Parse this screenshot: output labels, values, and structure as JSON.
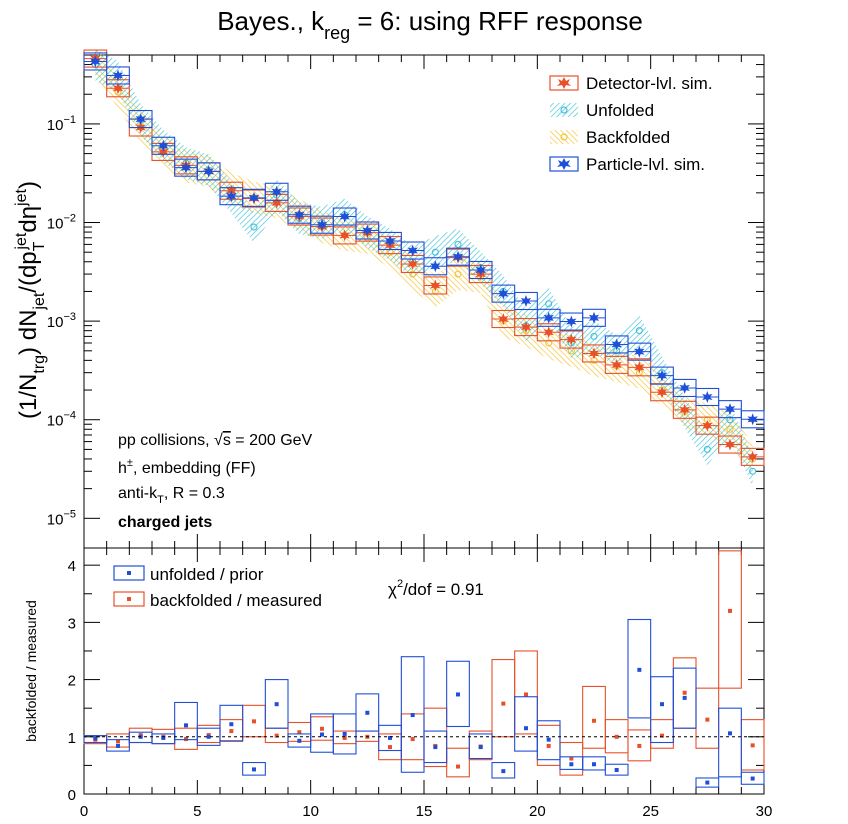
{
  "colors": {
    "detector": "#e8502a",
    "unfolded": "#3ec1d8",
    "backfolded": "#f5c32c",
    "particle": "#1f4fd8"
  },
  "chart_data": [
    {
      "type": "scatter",
      "log_y": true,
      "title": "Bayes., k",
      "title_sub": "reg",
      "title_tail": " = 6: using RFF response",
      "ylabel": {
        "a": "(1/N",
        "a_sub": "trg",
        "b": ") dN",
        "b_sub": "jet",
        "c": "/(dp",
        "c_sub": "T",
        "c_sup": "jet",
        "d": "dη",
        "d_sup": "jet",
        "e": ")"
      },
      "xlim": [
        0,
        30
      ],
      "ylim": [
        5e-06,
        0.5
      ],
      "y_ticks": [
        {
          "value": 0.1,
          "base": "10",
          "exp": "−1"
        },
        {
          "value": 0.01,
          "base": "10",
          "exp": "−2"
        },
        {
          "value": 0.001,
          "base": "10",
          "exp": "−3"
        },
        {
          "value": 0.0001,
          "base": "10",
          "exp": "−4"
        },
        {
          "value": 1e-05,
          "base": "10",
          "exp": "−5"
        }
      ],
      "legend": {
        "position": "top-right",
        "entries": [
          "Detector-lvl. sim.",
          "Unfolded",
          "Backfolded",
          "Particle-lvl. sim."
        ]
      },
      "annotations": {
        "line1_a": "pp collisions, ",
        "line1_sqrt": "√",
        "line1_s": "s",
        "line1_b": " = 200 GeV",
        "line2_a": "h",
        "line2_sup": "±",
        "line2_b": ", embedding (FF)",
        "line3_a": "anti-k",
        "line3_sub": "T",
        "line3_b": ", R = 0.3",
        "line4": "charged jets"
      },
      "x": [
        0.5,
        1.5,
        2.5,
        3.5,
        4.5,
        5.5,
        6.5,
        7.5,
        8.5,
        9.5,
        10.5,
        11.5,
        12.5,
        13.5,
        14.5,
        15.5,
        16.5,
        17.5,
        18.5,
        19.5,
        20.5,
        21.5,
        22.5,
        23.5,
        24.5,
        25.5,
        26.5,
        27.5,
        28.5,
        29.5
      ],
      "series": [
        {
          "name": "Detector-lvl. sim.",
          "values": [
            0.46,
            0.23,
            0.092,
            0.052,
            0.038,
            0.033,
            0.021,
            0.0175,
            0.0158,
            0.0115,
            0.0091,
            0.0074,
            0.0079,
            0.0059,
            0.0038,
            0.0023,
            0.0044,
            0.003,
            0.00105,
            0.00087,
            0.00077,
            0.00065,
            0.00047,
            0.00036,
            0.00034,
            0.00019,
            0.000126,
            8.7e-05,
            5.6e-05,
            4.2e-05
          ]
        },
        {
          "name": "Unfolded",
          "values": [
            0.4,
            0.3,
            0.11,
            0.06,
            0.04,
            0.034,
            0.018,
            0.009,
            0.019,
            0.011,
            0.01,
            0.012,
            0.008,
            0.006,
            0.004,
            0.005,
            0.006,
            0.0035,
            0.002,
            0.0009,
            0.0015,
            0.0006,
            0.0007,
            0.0005,
            0.0008,
            0.0003,
            0.00012,
            5e-05,
            0.0001,
            3e-05
          ]
        },
        {
          "name": "Backfolded",
          "values": [
            0.44,
            0.21,
            0.095,
            0.053,
            0.037,
            0.033,
            0.022,
            0.018,
            0.016,
            0.012,
            0.009,
            0.0075,
            0.007,
            0.005,
            0.003,
            0.002,
            0.003,
            0.0028,
            0.001,
            0.0008,
            0.0006,
            0.0005,
            0.0004,
            0.00035,
            0.0003,
            0.0002,
            0.00012,
            0.0001,
            8e-05,
            4e-05
          ]
        },
        {
          "name": "Particle-lvl. sim.",
          "values": [
            0.43,
            0.31,
            0.112,
            0.06,
            0.036,
            0.033,
            0.0185,
            0.0178,
            0.0205,
            0.012,
            0.0095,
            0.0115,
            0.0083,
            0.0065,
            0.0052,
            0.0036,
            0.0045,
            0.0033,
            0.0019,
            0.0016,
            0.00108,
            0.00099,
            0.00108,
            0.00058,
            0.00049,
            0.00028,
            0.00021,
            0.00017,
            0.000128,
            0.000101
          ]
        }
      ]
    },
    {
      "type": "scatter",
      "ylabel": "backfolded / measured",
      "xlim": [
        0,
        30
      ],
      "ylim": [
        0,
        4.3
      ],
      "x_ticks": [
        0,
        5,
        10,
        15,
        20,
        25,
        30
      ],
      "y_ticks": [
        0,
        1,
        2,
        3,
        4
      ],
      "legend": {
        "position": "top-left",
        "entries": [
          "unfolded / prior",
          "backfolded / measured"
        ]
      },
      "chi2_label": {
        "a": "χ",
        "sup": "2",
        "b": "/dof = 0.91"
      },
      "x": [
        0.5,
        1.5,
        2.5,
        3.5,
        4.5,
        5.5,
        6.5,
        7.5,
        8.5,
        9.5,
        10.5,
        11.5,
        12.5,
        13.5,
        14.5,
        15.5,
        16.5,
        17.5,
        18.5,
        19.5,
        20.5,
        21.5,
        22.5,
        23.5,
        24.5,
        25.5,
        26.5,
        27.5,
        28.5,
        29.5
      ],
      "series": [
        {
          "name": "unfolded / prior",
          "values": [
            0.97,
            0.84,
            1.0,
            0.98,
            1.2,
            1.0,
            1.22,
            0.43,
            1.57,
            0.93,
            1.04,
            1.05,
            1.42,
            0.98,
            1.38,
            0.82,
            1.74,
            0.82,
            0.4,
            1.15,
            0.95,
            0.52,
            0.52,
            0.42,
            2.17,
            1.57,
            1.68,
            0.2,
            1.06,
            0.27
          ],
          "box_low": [
            0.9,
            0.75,
            0.9,
            0.88,
            0.95,
            0.85,
            0.93,
            0.33,
            1.15,
            0.82,
            0.73,
            0.7,
            1.1,
            0.76,
            0.38,
            0.55,
            1.18,
            0.62,
            0.28,
            0.75,
            0.6,
            0.43,
            0.42,
            0.33,
            1.33,
            0.9,
            1.15,
            0.12,
            0.3,
            0.17
          ],
          "box_high": [
            1.02,
            0.95,
            1.08,
            1.05,
            1.6,
            1.15,
            1.55,
            0.55,
            2.0,
            1.05,
            1.4,
            1.4,
            1.75,
            1.2,
            2.4,
            1.1,
            2.32,
            1.05,
            0.55,
            1.7,
            1.28,
            0.65,
            0.65,
            0.52,
            3.05,
            2.05,
            2.2,
            0.28,
            1.5,
            0.38
          ]
        },
        {
          "name": "backfolded / measured",
          "values": [
            0.95,
            0.92,
            1.03,
            1.0,
            0.96,
            1.03,
            1.1,
            1.27,
            1.02,
            1.08,
            1.14,
            0.98,
            1.0,
            0.82,
            0.96,
            0.84,
            0.48,
            0.83,
            1.58,
            1.74,
            0.84,
            0.62,
            1.28,
            1.0,
            0.84,
            1.02,
            1.77,
            1.3,
            3.2,
            0.85
          ],
          "box_low": [
            0.88,
            0.82,
            0.9,
            0.88,
            0.78,
            0.9,
            0.92,
            1.0,
            0.9,
            0.92,
            0.94,
            0.88,
            0.92,
            0.6,
            0.6,
            0.48,
            0.3,
            0.6,
            1.0,
            1.05,
            0.5,
            0.33,
            0.8,
            0.72,
            0.58,
            0.8,
            1.15,
            0.8,
            1.85,
            0.42
          ],
          "box_high": [
            1.02,
            1.05,
            1.15,
            1.13,
            1.15,
            1.2,
            1.3,
            1.55,
            1.15,
            1.25,
            1.35,
            1.1,
            1.1,
            1.05,
            1.4,
            1.5,
            0.8,
            1.1,
            2.35,
            2.5,
            1.2,
            0.9,
            1.88,
            1.3,
            1.12,
            1.3,
            2.38,
            1.85,
            4.25,
            1.3
          ]
        }
      ]
    }
  ]
}
